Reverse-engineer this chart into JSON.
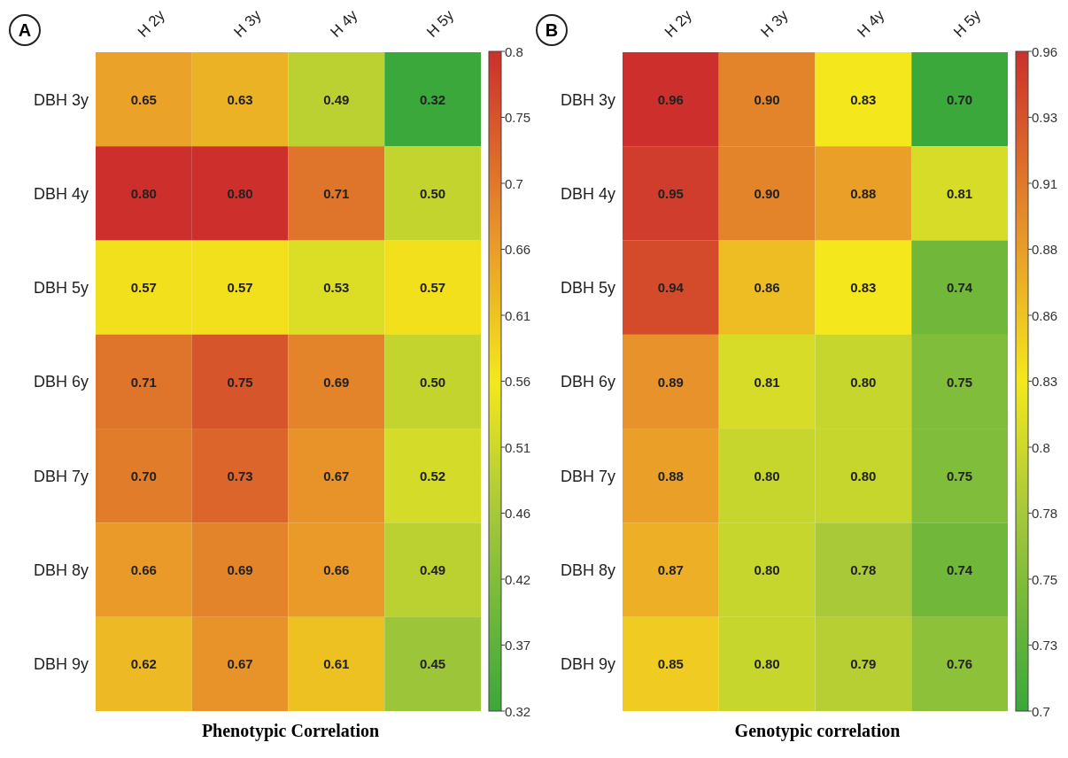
{
  "chart_data": [
    {
      "type": "heatmap",
      "title": "Phenotypic Correlation",
      "annotations": [
        "A"
      ],
      "categories": [
        "H 2y",
        "H 3y",
        "H 4y",
        "H 5y"
      ],
      "y_categories": [
        "DBH 3y",
        "DBH 4y",
        "DBH 5y",
        "DBH 6y",
        "DBH 7y",
        "DBH 8y",
        "DBH 9y"
      ],
      "cells": [
        [
          0.65,
          0.63,
          0.49,
          0.32
        ],
        [
          0.8,
          0.8,
          0.71,
          0.5
        ],
        [
          0.57,
          0.57,
          0.53,
          0.57
        ],
        [
          0.71,
          0.75,
          0.69,
          0.5
        ],
        [
          0.7,
          0.73,
          0.67,
          0.52
        ],
        [
          0.66,
          0.69,
          0.66,
          0.49
        ],
        [
          0.62,
          0.67,
          0.61,
          0.45
        ]
      ],
      "cell_labels": [
        [
          "0.65",
          "0.63",
          "0.49",
          "0.32"
        ],
        [
          "0.80",
          "0.80",
          "0.71",
          "0.50"
        ],
        [
          "0.57",
          "0.57",
          "0.53",
          "0.57"
        ],
        [
          "0.71",
          "0.75",
          "0.69",
          "0.50"
        ],
        [
          "0.70",
          "0.73",
          "0.67",
          "0.52"
        ],
        [
          "0.66",
          "0.69",
          "0.66",
          "0.49"
        ],
        [
          "0.62",
          "0.67",
          "0.61",
          "0.45"
        ]
      ],
      "clim": [
        0.32,
        0.8
      ],
      "cticks": [
        0.32,
        {
          "value": 0.368,
          "label": "0.37"
        },
        {
          "value": 0.416,
          "label": "0.42"
        },
        {
          "value": 0.464,
          "label": "0.46"
        },
        {
          "value": 0.512,
          "label": "0.51"
        },
        0.56,
        {
          "value": 0.608,
          "label": "0.61"
        },
        {
          "value": 0.656,
          "label": "0.66"
        },
        {
          "value": 0.704,
          "label": "0.7"
        },
        {
          "value": 0.752,
          "label": "0.75"
        },
        0.8
      ]
    },
    {
      "type": "heatmap",
      "title": "Genotypic correlation",
      "annotations": [
        "B"
      ],
      "categories": [
        "H 2y",
        "H 3y",
        "H 4y",
        "H 5y"
      ],
      "y_categories": [
        "DBH 3y",
        "DBH 4y",
        "DBH 5y",
        "DBH 6y",
        "DBH 7y",
        "DBH 8y",
        "DBH 9y"
      ],
      "cells": [
        [
          0.96,
          0.9,
          0.83,
          0.7
        ],
        [
          0.95,
          0.9,
          0.88,
          0.81
        ],
        [
          0.94,
          0.86,
          0.83,
          0.74
        ],
        [
          0.89,
          0.81,
          0.8,
          0.75
        ],
        [
          0.88,
          0.8,
          0.8,
          0.75
        ],
        [
          0.87,
          0.8,
          0.78,
          0.74
        ],
        [
          0.85,
          0.8,
          0.79,
          0.76
        ]
      ],
      "cell_labels": [
        [
          "0.96",
          "0.90",
          "0.83",
          "0.70"
        ],
        [
          "0.95",
          "0.90",
          "0.88",
          "0.81"
        ],
        [
          "0.94",
          "0.86",
          "0.83",
          "0.74"
        ],
        [
          "0.89",
          "0.81",
          "0.80",
          "0.75"
        ],
        [
          "0.88",
          "0.80",
          "0.80",
          "0.75"
        ],
        [
          "0.87",
          "0.80",
          "0.78",
          "0.74"
        ],
        [
          "0.85",
          "0.80",
          "0.79",
          "0.76"
        ]
      ],
      "clim": [
        0.7,
        0.96
      ],
      "cticks": [
        0.7,
        {
          "value": 0.726,
          "label": "0.73"
        },
        {
          "value": 0.752,
          "label": "0.75"
        },
        {
          "value": 0.778,
          "label": "0.78"
        },
        {
          "value": 0.804,
          "label": "0.8"
        },
        0.83,
        {
          "value": 0.856,
          "label": "0.86"
        },
        {
          "value": 0.882,
          "label": "0.88"
        },
        {
          "value": 0.908,
          "label": "0.91"
        },
        {
          "value": 0.934,
          "label": "0.93"
        },
        0.96
      ]
    }
  ]
}
